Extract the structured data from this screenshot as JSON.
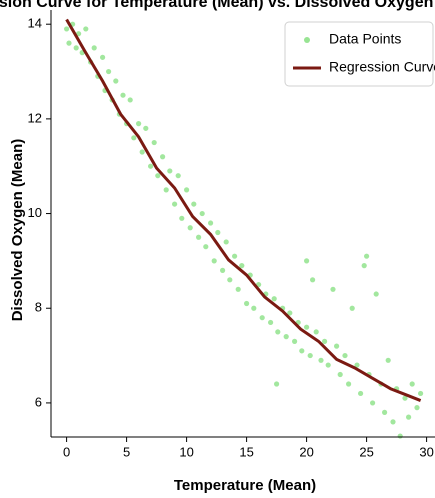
{
  "chart_data": {
    "type": "scatter",
    "title": "Regression Curve for Temperature (Mean) vs. Dissolved Oxygen (Mean)",
    "x_label": "Temperature (Mean)",
    "y_label": "Dissolved Oxygen (Mean)",
    "xlim": [
      -1.3,
      30.7
    ],
    "ylim": [
      5.28,
      14.3
    ],
    "xticks": [
      0,
      5,
      10,
      15,
      20,
      25,
      30
    ],
    "yticks": [
      6,
      8,
      10,
      12,
      14
    ],
    "legend": "upper right",
    "series": [
      {
        "name": "Data Points",
        "color": "#98e493",
        "kind": "points",
        "x": [
          0,
          0.2,
          0.5,
          0.8,
          1.0,
          1.3,
          1.6,
          2.0,
          2.3,
          2.6,
          3.0,
          3.2,
          3.5,
          3.8,
          4.1,
          4.4,
          4.7,
          5.0,
          5.3,
          5.6,
          6.0,
          6.3,
          6.6,
          7.0,
          7.3,
          7.6,
          8.0,
          8.3,
          8.6,
          9.0,
          9.3,
          9.6,
          10.0,
          10.3,
          10.6,
          11.0,
          11.3,
          11.6,
          12.0,
          12.3,
          12.6,
          13.0,
          13.3,
          13.6,
          14.0,
          14.3,
          14.6,
          15.0,
          15.3,
          15.6,
          16.0,
          16.3,
          16.6,
          17.0,
          17.3,
          17.6,
          18.0,
          18.3,
          18.6,
          19.0,
          19.3,
          19.6,
          20.0,
          20.3,
          20.5,
          20.8,
          21.2,
          21.5,
          21.8,
          22.2,
          22.5,
          22.8,
          23.2,
          23.5,
          23.8,
          24.2,
          24.5,
          24.8,
          25.2,
          25.5,
          25.8,
          26.2,
          26.5,
          26.8,
          27.2,
          27.5,
          27.8,
          28.2,
          28.5,
          28.8,
          29.2,
          29.5,
          17.5,
          20.0,
          25.0
        ],
        "values": [
          13.9,
          13.6,
          14.0,
          13.5,
          13.8,
          13.4,
          13.9,
          13.2,
          13.5,
          12.9,
          13.3,
          12.6,
          13.0,
          12.4,
          12.8,
          12.1,
          12.5,
          11.9,
          12.4,
          11.6,
          11.9,
          11.3,
          11.8,
          11.0,
          11.5,
          10.8,
          11.2,
          10.5,
          10.9,
          10.2,
          10.8,
          9.9,
          10.5,
          9.7,
          10.2,
          9.5,
          10.0,
          9.3,
          9.8,
          9.0,
          9.6,
          8.8,
          9.4,
          8.6,
          9.1,
          8.4,
          8.9,
          8.1,
          8.7,
          8.0,
          8.5,
          7.8,
          8.3,
          7.7,
          8.2,
          7.5,
          8.0,
          7.4,
          7.9,
          7.3,
          7.7,
          7.1,
          7.6,
          7.0,
          8.6,
          7.5,
          6.9,
          7.3,
          6.8,
          8.4,
          7.2,
          6.6,
          7.0,
          6.4,
          8.0,
          6.8,
          6.2,
          8.9,
          6.6,
          6.0,
          8.3,
          6.4,
          5.8,
          6.9,
          5.6,
          6.3,
          5.3,
          6.1,
          5.7,
          6.4,
          5.9,
          6.2,
          6.4,
          9.0,
          9.1
        ]
      },
      {
        "name": "Regression Curve",
        "color": "#7b1a12",
        "kind": "line",
        "x": [
          0,
          1.5,
          3,
          4.5,
          6,
          7.5,
          9,
          10.5,
          12,
          13.5,
          15,
          16.5,
          18,
          19.5,
          21,
          22.5,
          24,
          25.5,
          27,
          28.5,
          29.5
        ],
        "values": [
          14.1,
          13.44,
          12.8,
          12.1,
          11.62,
          10.96,
          10.54,
          9.94,
          9.56,
          9.02,
          8.7,
          8.24,
          7.94,
          7.56,
          7.3,
          6.92,
          6.74,
          6.52,
          6.3,
          6.15,
          6.05
        ]
      }
    ]
  }
}
